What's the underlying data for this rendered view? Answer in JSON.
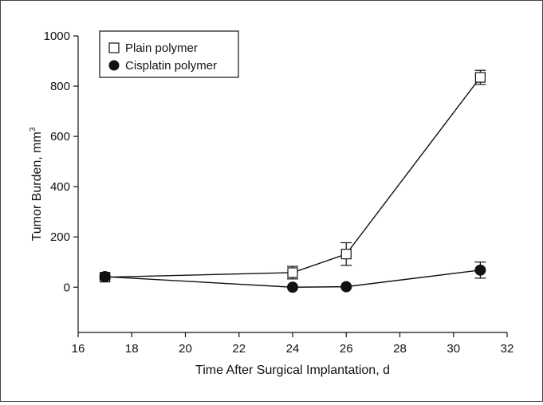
{
  "chart_data": {
    "type": "line",
    "title": "",
    "xlabel": "Time After Surgical Implantation, d",
    "ylabel": "Tumor Burden, mm",
    "ylabel_superscript": "3",
    "xlim": [
      16,
      32
    ],
    "ylim": [
      -180,
      1000
    ],
    "xticks": [
      16,
      18,
      20,
      22,
      24,
      26,
      28,
      30,
      32
    ],
    "yticks": [
      0,
      200,
      400,
      600,
      800,
      1000
    ],
    "grid": false,
    "legend_position": "top-left",
    "series": [
      {
        "name": "Plain polymer",
        "marker": "open-square",
        "color": "#111111",
        "x": [
          17,
          24,
          26,
          31
        ],
        "y": [
          40,
          58,
          132,
          835
        ],
        "error": [
          8,
          25,
          45,
          28
        ]
      },
      {
        "name": "Cisplatin polymer",
        "marker": "filled-circle",
        "color": "#111111",
        "x": [
          17,
          24,
          26,
          31
        ],
        "y": [
          42,
          0,
          2,
          68
        ],
        "error": [
          0,
          0,
          0,
          32
        ]
      }
    ]
  }
}
